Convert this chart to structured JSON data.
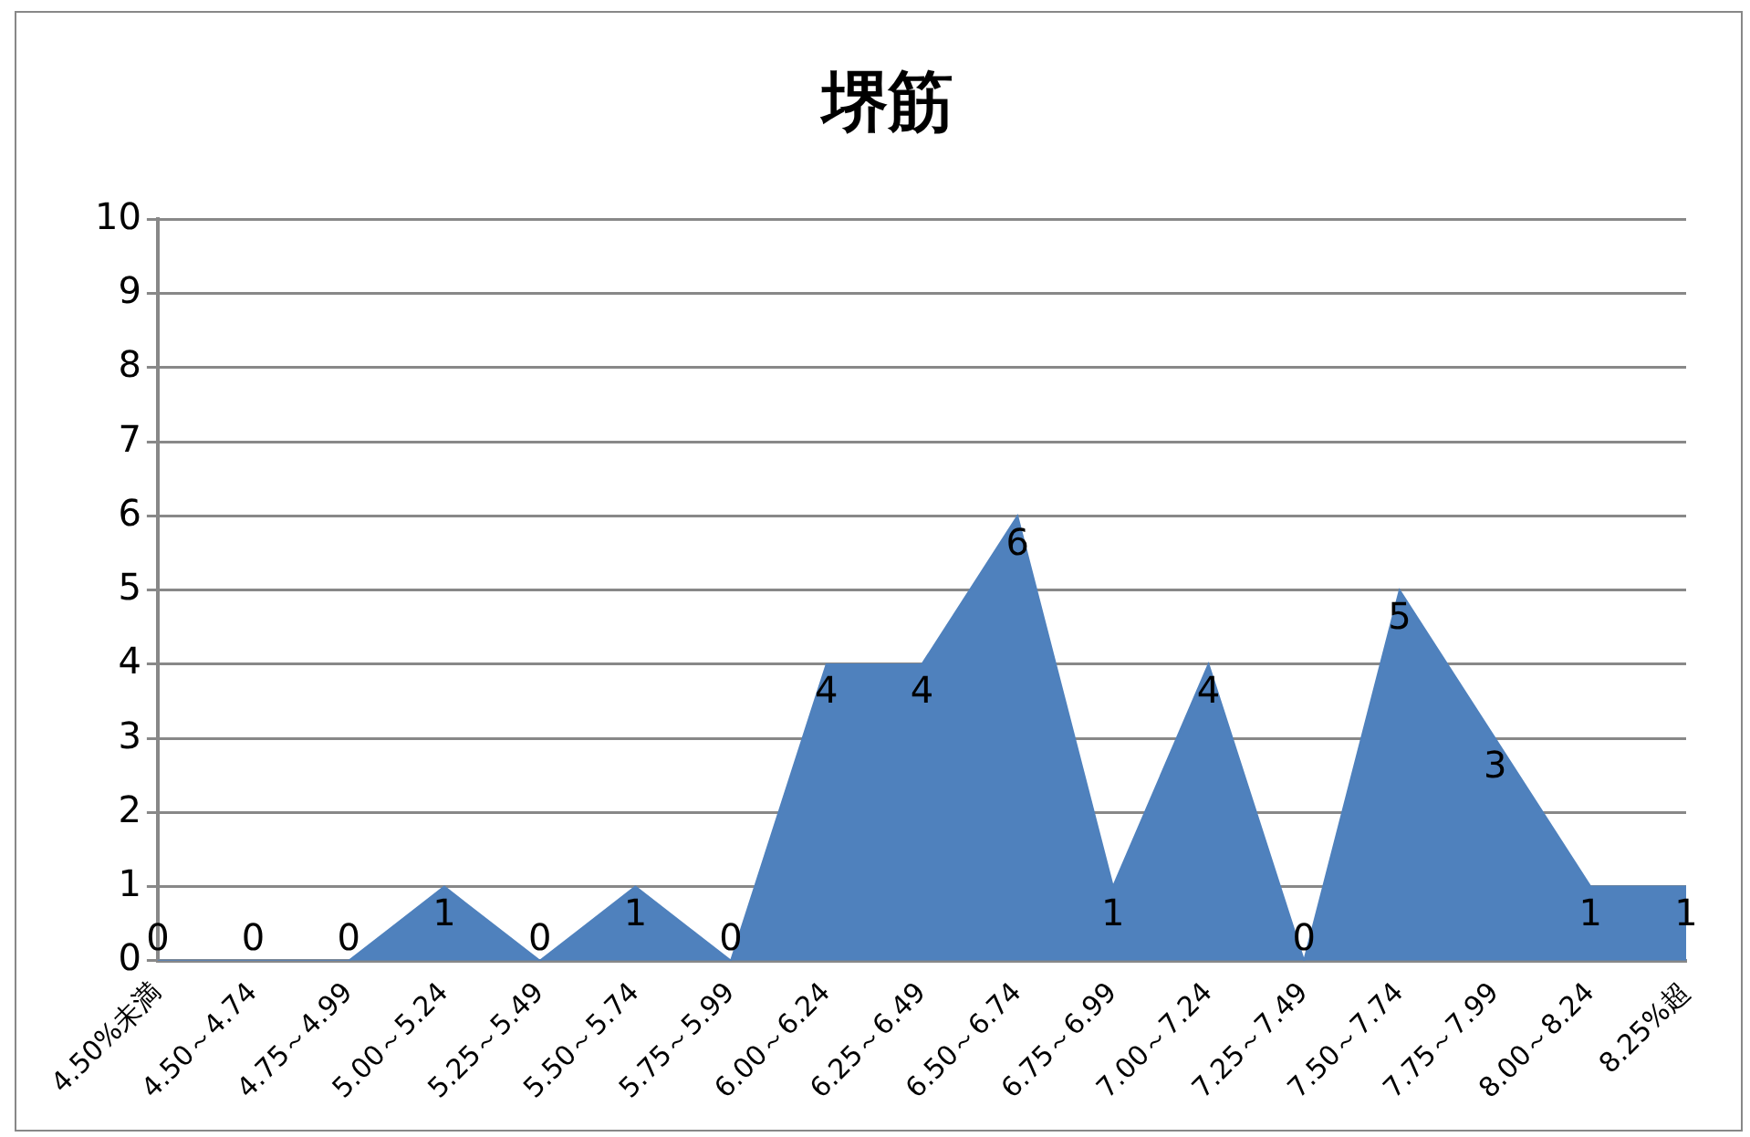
{
  "chart_data": {
    "type": "area",
    "title": "堺筋",
    "categories": [
      "4.50%未満",
      "4.50～4.74",
      "4.75～4.99",
      "5.00～5.24",
      "5.25～5.49",
      "5.50～5.74",
      "5.75～5.99",
      "6.00～6.24",
      "6.25～6.49",
      "6.50～6.74",
      "6.75～6.99",
      "7.00～7.24",
      "7.25～7.49",
      "7.50～7.74",
      "7.75～7.99",
      "8.00～8.24",
      "8.25%超"
    ],
    "series": [
      {
        "color": "#4f81bd",
        "values": [
          0,
          0,
          0,
          1,
          0,
          1,
          0,
          4,
          4,
          6,
          1,
          4,
          0,
          5,
          3,
          1,
          1
        ]
      }
    ],
    "ylim": [
      0,
      10
    ],
    "yticks": [
      0,
      1,
      2,
      3,
      4,
      5,
      6,
      7,
      8,
      9,
      10
    ],
    "grid": "y",
    "legend": false,
    "data_labels": true
  }
}
